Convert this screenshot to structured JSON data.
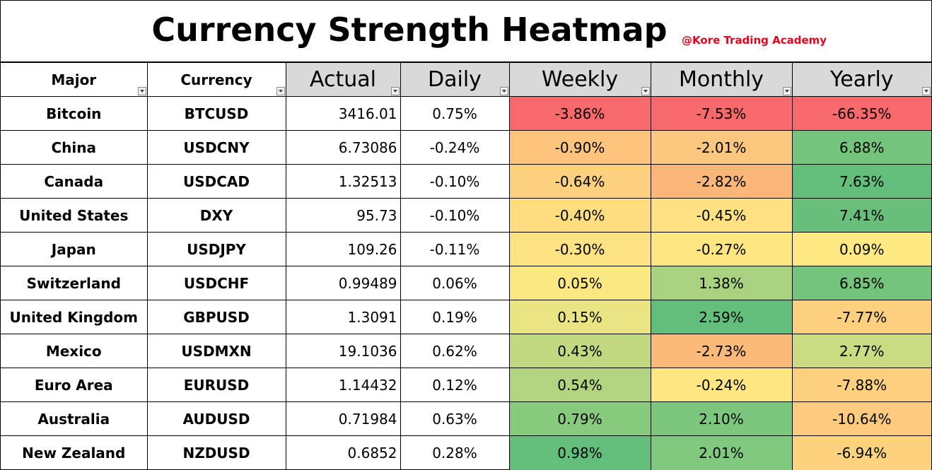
{
  "title": "Currency Strength Heatmap",
  "watermark": "@Kore Trading Academy",
  "columns": [
    "Major",
    "Currency",
    "Actual",
    "Daily",
    "Weekly",
    "Monthly",
    "Yearly"
  ],
  "rows": [
    {
      "major": "Bitcoin",
      "currency": "BTCUSD",
      "actual": "3416.01",
      "daily": "0.75%",
      "weekly": "-3.86%",
      "monthly": "-7.53%",
      "yearly": "-66.35%",
      "weekly_color": "#f8696b",
      "monthly_color": "#f8696b",
      "yearly_color": "#f8696b"
    },
    {
      "major": "China",
      "currency": "USDCNY",
      "actual": "6.73086",
      "daily": "-0.24%",
      "weekly": "-0.90%",
      "monthly": "-2.01%",
      "yearly": "6.88%",
      "weekly_color": "#fdc47d",
      "monthly_color": "#fcc77e",
      "yearly_color": "#74c47c"
    },
    {
      "major": "Canada",
      "currency": "USDCAD",
      "actual": "1.32513",
      "daily": "-0.10%",
      "weekly": "-0.64%",
      "monthly": "-2.82%",
      "yearly": "7.63%",
      "weekly_color": "#fdd17f",
      "monthly_color": "#fbb679",
      "yearly_color": "#63be7b"
    },
    {
      "major": "United States",
      "currency": "DXY",
      "actual": "95.73",
      "daily": "-0.10%",
      "weekly": "-0.40%",
      "monthly": "-0.45%",
      "yearly": "7.41%",
      "weekly_color": "#fedd81",
      "monthly_color": "#fee282",
      "yearly_color": "#67bf7b"
    },
    {
      "major": "Japan",
      "currency": "USDJPY",
      "actual": "109.26",
      "daily": "-0.11%",
      "weekly": "-0.30%",
      "monthly": "-0.27%",
      "yearly": "0.09%",
      "weekly_color": "#fee382",
      "monthly_color": "#fee683",
      "yearly_color": "#fee983"
    },
    {
      "major": "Switzerland",
      "currency": "USDCHF",
      "actual": "0.99489",
      "daily": "0.06%",
      "weekly": "0.05%",
      "monthly": "1.38%",
      "yearly": "6.85%",
      "weekly_color": "#fce883",
      "monthly_color": "#a8d27f",
      "yearly_color": "#74c47c"
    },
    {
      "major": "United Kingdom",
      "currency": "GBPUSD",
      "actual": "1.3091",
      "daily": "0.19%",
      "weekly": "0.15%",
      "monthly": "2.59%",
      "yearly": "-7.77%",
      "weekly_color": "#eae583",
      "monthly_color": "#63be7b",
      "yearly_color": "#fdd07f"
    },
    {
      "major": "Mexico",
      "currency": "USDMXN",
      "actual": "19.1036",
      "daily": "0.62%",
      "weekly": "0.43%",
      "monthly": "-2.73%",
      "yearly": "2.77%",
      "weekly_color": "#c1d981",
      "monthly_color": "#fbb97a",
      "yearly_color": "#c9dc81"
    },
    {
      "major": "Euro Area",
      "currency": "EURUSD",
      "actual": "1.14432",
      "daily": "0.12%",
      "weekly": "0.54%",
      "monthly": "-0.24%",
      "yearly": "-7.88%",
      "weekly_color": "#b1d480",
      "monthly_color": "#fee683",
      "yearly_color": "#fdd07f"
    },
    {
      "major": "Australia",
      "currency": "AUDUSD",
      "actual": "0.71984",
      "daily": "0.63%",
      "weekly": "0.79%",
      "monthly": "2.10%",
      "yearly": "-10.64%",
      "weekly_color": "#89cb7e",
      "monthly_color": "#7bc77d",
      "yearly_color": "#fdcb7e"
    },
    {
      "major": "New Zealand",
      "currency": "NZDUSD",
      "actual": "0.6852",
      "daily": "0.28%",
      "weekly": "0.98%",
      "monthly": "2.01%",
      "yearly": "-6.94%",
      "weekly_color": "#63be7b",
      "monthly_color": "#7fc87d",
      "yearly_color": "#fdd380"
    }
  ]
}
